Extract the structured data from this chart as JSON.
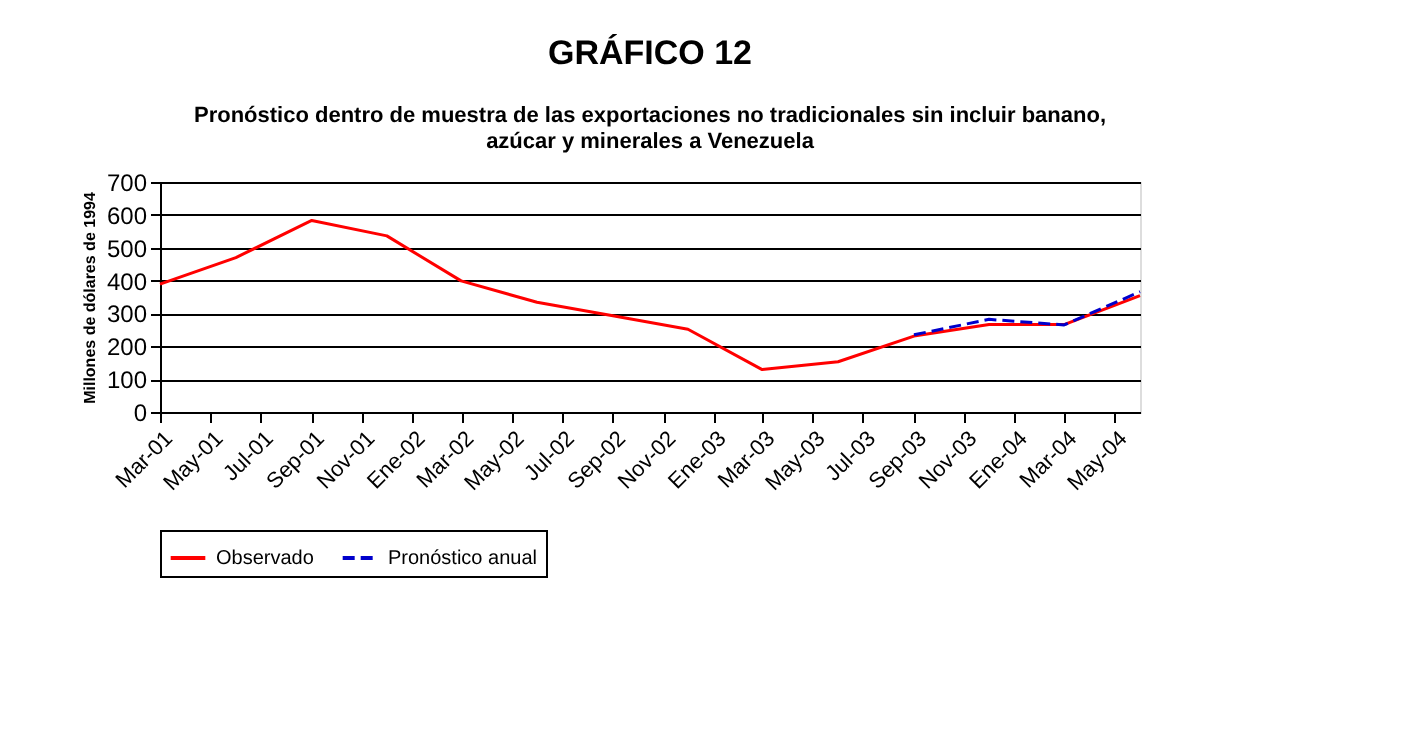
{
  "chart_data": {
    "type": "line",
    "title": "GRÁFICO 12",
    "subtitle": "Pronóstico dentro de muestra de las exportaciones no tradicionales sin incluir banano, azúcar y minerales a Venezuela",
    "ylabel": "Millones de dólares de 1994",
    "x": [
      "2001-03",
      "2001-06",
      "2001-09",
      "2001-12",
      "2002-03",
      "2002-06",
      "2002-09",
      "2002-12",
      "2003-03",
      "2003-06",
      "2003-09",
      "2003-12",
      "2004-03",
      "2004-06"
    ],
    "series": [
      {
        "name": "Observado",
        "color": "#ff0000",
        "line_style": "solid",
        "values": [
          389,
          470,
          583,
          536,
          399,
          334,
          293,
          252,
          129,
          153,
          231,
          266,
          266,
          354
        ]
      },
      {
        "name": "Pronóstico anual",
        "color": "#0000cc",
        "line_style": "dashed",
        "values": [
          null,
          null,
          null,
          null,
          null,
          null,
          null,
          null,
          null,
          null,
          235,
          282,
          265,
          366
        ]
      }
    ],
    "xlim": [
      "2001-03",
      "2004-06"
    ],
    "xticks": [
      {
        "value": "2001-03",
        "label": "Mar-01"
      },
      {
        "value": "2001-05",
        "label": "May-01"
      },
      {
        "value": "2001-07",
        "label": "Jul-01"
      },
      {
        "value": "2001-09",
        "label": "Sep-01"
      },
      {
        "value": "2001-11",
        "label": "Nov-01"
      },
      {
        "value": "2002-01",
        "label": "Ene-02"
      },
      {
        "value": "2002-03",
        "label": "Mar-02"
      },
      {
        "value": "2002-05",
        "label": "May-02"
      },
      {
        "value": "2002-07",
        "label": "Jul-02"
      },
      {
        "value": "2002-09",
        "label": "Sep-02"
      },
      {
        "value": "2002-11",
        "label": "Nov-02"
      },
      {
        "value": "2003-01",
        "label": "Ene-03"
      },
      {
        "value": "2003-03",
        "label": "Mar-03"
      },
      {
        "value": "2003-05",
        "label": "May-03"
      },
      {
        "value": "2003-07",
        "label": "Jul-03"
      },
      {
        "value": "2003-09",
        "label": "Sep-03"
      },
      {
        "value": "2003-11",
        "label": "Nov-03"
      },
      {
        "value": "2004-01",
        "label": "Ene-04"
      },
      {
        "value": "2004-03",
        "label": "Mar-04"
      },
      {
        "value": "2004-05",
        "label": "May-04"
      }
    ],
    "ylim": [
      0,
      700
    ],
    "yticks": [
      0,
      100,
      200,
      300,
      400,
      500,
      600,
      700
    ],
    "grid": "y",
    "legend": "bottom",
    "marker": "none"
  }
}
